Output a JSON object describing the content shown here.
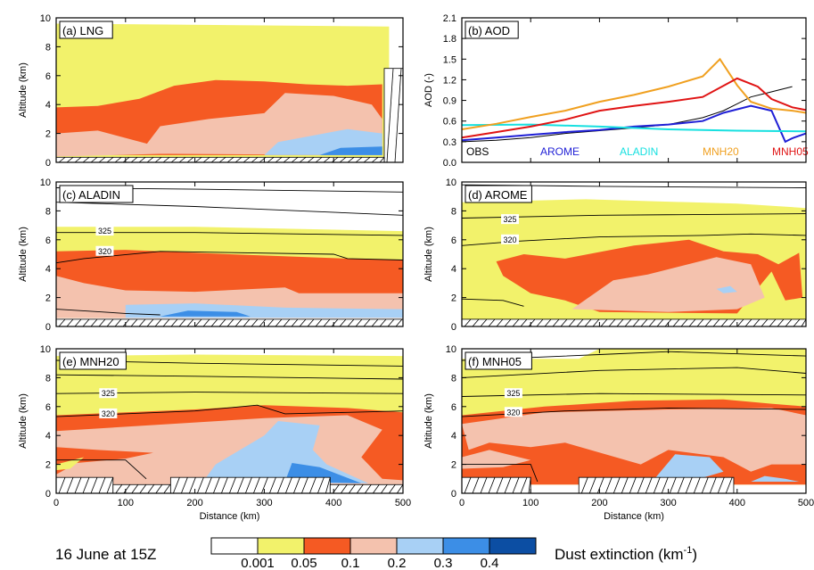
{
  "figure": {
    "date_label": "16 June at 15Z",
    "colorbar_title": "Dust extinction (km",
    "colorbar_title_sup": "-1",
    "colorbar_title_end": ")",
    "colorbar_labels": [
      "0.001",
      "0.05",
      "0.1",
      "0.2",
      "0.3",
      "0.4"
    ],
    "colorbar_colors": [
      "#ffffff",
      "#f2f26b",
      "#f55a23",
      "#f4c2ae",
      "#a8d0f5",
      "#3c8ee6",
      "#0c4ea3"
    ]
  },
  "colors": {
    "c0": "#ffffff",
    "c1": "#f2f26b",
    "c2": "#f55a23",
    "c3": "#f4c2ae",
    "c4": "#a8d0f5",
    "c5": "#3c8ee6",
    "c6": "#0c4ea3"
  },
  "panels": {
    "a": {
      "label": "(a) LNG",
      "ylabel": "Altitude (km)"
    },
    "b": {
      "label": "(b) AOD",
      "ylabel": "AOD (-)"
    },
    "c": {
      "label": "(c) ALADIN",
      "ylabel": "Altitude (km)",
      "contours": [
        "325",
        "320"
      ]
    },
    "d": {
      "label": "(d) AROME",
      "ylabel": "Altitude (km)",
      "contours": [
        "325",
        "320"
      ]
    },
    "e": {
      "label": "(e) MNH20",
      "ylabel": "Altitude (km)",
      "xlabel": "Distance (km)",
      "contours": [
        "325",
        "320"
      ]
    },
    "f": {
      "label": "(f) MNH05",
      "ylabel": "Altitude (km)",
      "xlabel": "Distance (km)",
      "contours": [
        "325",
        "320"
      ]
    }
  },
  "chart_data": {
    "type": "line",
    "title": "(b) AOD",
    "ylabel": "AOD (-)",
    "xlim": [
      0,
      500
    ],
    "ylim": [
      0.0,
      2.1
    ],
    "yticks": [
      "0.0",
      "0.3",
      "0.6",
      "0.9",
      "1.2",
      "1.5",
      "1.8",
      "2.1"
    ],
    "series": [
      {
        "name": "OBS",
        "color": "#000000",
        "x": [
          0,
          50,
          100,
          150,
          200,
          250,
          300,
          350,
          380,
          400,
          420,
          440,
          460,
          480
        ],
        "y": [
          0.3,
          0.32,
          0.36,
          0.42,
          0.46,
          0.5,
          0.55,
          0.65,
          0.75,
          0.85,
          0.95,
          1.0,
          1.05,
          1.1
        ]
      },
      {
        "name": "AROME",
        "color": "#1f1fd6",
        "x": [
          0,
          50,
          100,
          150,
          200,
          250,
          300,
          350,
          380,
          420,
          450,
          470,
          480,
          500
        ],
        "y": [
          0.32,
          0.36,
          0.4,
          0.44,
          0.47,
          0.52,
          0.55,
          0.6,
          0.72,
          0.82,
          0.75,
          0.3,
          0.35,
          0.42
        ]
      },
      {
        "name": "ALADIN",
        "color": "#17e0e0",
        "x": [
          0,
          100,
          200,
          300,
          400,
          500
        ],
        "y": [
          0.54,
          0.55,
          0.52,
          0.48,
          0.46,
          0.45
        ]
      },
      {
        "name": "MNH20",
        "color": "#f0a020",
        "x": [
          0,
          50,
          100,
          150,
          200,
          250,
          300,
          350,
          375,
          400,
          420,
          450,
          480,
          500
        ],
        "y": [
          0.48,
          0.56,
          0.66,
          0.75,
          0.88,
          0.98,
          1.1,
          1.25,
          1.5,
          1.12,
          0.88,
          0.78,
          0.75,
          0.72
        ]
      },
      {
        "name": "MNH05",
        "color": "#e01414",
        "x": [
          0,
          50,
          100,
          150,
          200,
          250,
          300,
          350,
          400,
          430,
          450,
          480,
          500
        ],
        "y": [
          0.36,
          0.44,
          0.52,
          0.62,
          0.75,
          0.82,
          0.88,
          0.95,
          1.22,
          1.1,
          0.92,
          0.8,
          0.76
        ]
      }
    ]
  }
}
